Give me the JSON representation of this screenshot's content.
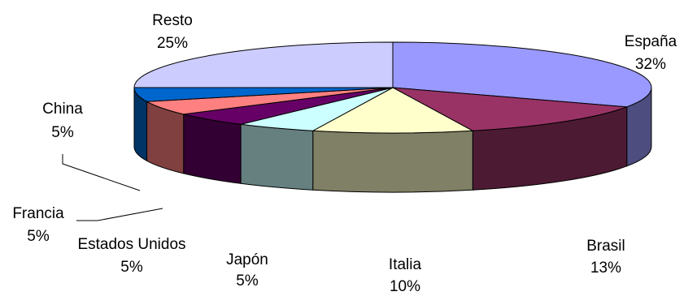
{
  "chart_data": {
    "type": "pie",
    "style": "3d",
    "slices": [
      {
        "label": "España",
        "value": 32,
        "value_label": "32%",
        "color": "#9999FF",
        "side_color": "#4D4D80"
      },
      {
        "label": "Brasil",
        "value": 13,
        "value_label": "13%",
        "color": "#993366",
        "side_color": "#4D1A33"
      },
      {
        "label": "Italia",
        "value": 10,
        "value_label": "10%",
        "color": "#FFFFCC",
        "side_color": "#808066"
      },
      {
        "label": "Japón",
        "value": 5,
        "value_label": "5%",
        "color": "#CCFFFF",
        "side_color": "#668080"
      },
      {
        "label": "Estados Unidos",
        "value": 5,
        "value_label": "5%",
        "color": "#660066",
        "side_color": "#330033"
      },
      {
        "label": "Francia",
        "value": 5,
        "value_label": "5%",
        "color": "#FF8080",
        "side_color": "#804040"
      },
      {
        "label": "China",
        "value": 5,
        "value_label": "5%",
        "color": "#0066CC",
        "side_color": "#003366"
      },
      {
        "label": "Resto",
        "value": 25,
        "value_label": "25%",
        "color": "#CCCCFF",
        "side_color": "#666680"
      }
    ]
  }
}
